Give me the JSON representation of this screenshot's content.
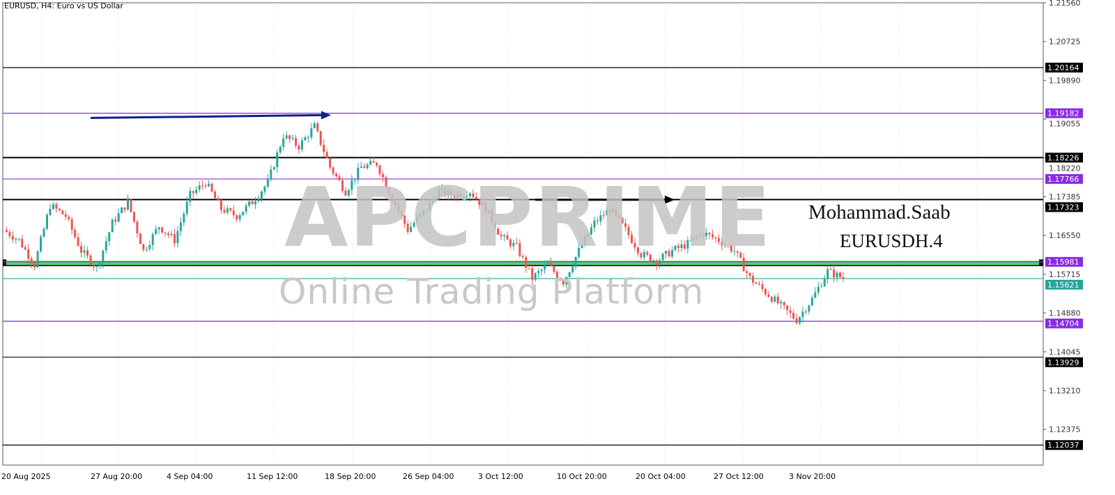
{
  "title": "EURUSD, H4:  Euro vs US Dollar",
  "watermark": {
    "brand": "APCPRIME",
    "tagline": "Online Trading Platform"
  },
  "annotation": {
    "author": "Mohammad.Saab",
    "symbol": "EURUSDH.4"
  },
  "chart_data": {
    "type": "candlestick",
    "symbol": "EURUSD",
    "timeframe": "H4",
    "ylim": [
      1.1175,
      1.2156
    ],
    "y_ticks": [
      "1.21560",
      "1.20725",
      "1.19890",
      "1.19055",
      "1.18220",
      "1.17385",
      "1.16550",
      "1.15715",
      "1.14880",
      "1.14045",
      "1.13210",
      "1.12375"
    ],
    "x_ticks": [
      "20 Aug 2025",
      "27 Aug 20:00",
      "4 Sep 04:00",
      "11 Sep 12:00",
      "18 Sep 20:00",
      "26 Sep 04:00",
      "3 Oct 12:00",
      "10 Oct 20:00",
      "20 Oct 04:00",
      "27 Oct 12:00",
      "3 Nov 20:00"
    ],
    "grid": true,
    "colors": {
      "bull": "#26a69a",
      "bear": "#ef5350"
    },
    "approx_closes": [
      1.1667,
      1.1645,
      1.1592,
      1.172,
      1.1697,
      1.1622,
      1.1585,
      1.1682,
      1.1727,
      1.1622,
      1.1675,
      1.1645,
      1.1742,
      1.1769,
      1.1712,
      1.1697,
      1.1727,
      1.1769,
      1.187,
      1.1847,
      1.189,
      1.1802,
      1.175,
      1.1802,
      1.181,
      1.1735,
      1.1667,
      1.1705,
      1.175,
      1.1742,
      1.175,
      1.1712,
      1.1652,
      1.163,
      1.1563,
      1.1592,
      1.1555,
      1.1622,
      1.1682,
      1.1712,
      1.1667,
      1.1615,
      1.16,
      1.1622,
      1.1637,
      1.166,
      1.1645,
      1.1622,
      1.1563,
      1.1533,
      1.1503,
      1.1473,
      1.1518,
      1.1578,
      1.1563
    ],
    "levels": [
      {
        "price": 1.20164,
        "label": "1.20164",
        "color": "#000000",
        "weight": "thin"
      },
      {
        "price": 1.19182,
        "label": "1.19182",
        "color": "#8a2be2",
        "weight": "thin"
      },
      {
        "price": 1.18226,
        "label": "1.18226",
        "color": "#000000",
        "weight": "thick"
      },
      {
        "price": 1.17766,
        "label": "1.17766",
        "color": "#8a2be2",
        "weight": "thin"
      },
      {
        "price": 1.17323,
        "label": "1.17323",
        "color": "#000000",
        "weight": "thick"
      },
      {
        "price": 1.15981,
        "label": "1.15981",
        "color": "#8a2be2",
        "weight": "thin"
      },
      {
        "price": 1.15621,
        "label": "1.15621",
        "color": "#26a69a",
        "weight": "thin"
      },
      {
        "price": 1.14704,
        "label": "1.14704",
        "color": "#8a2be2",
        "weight": "thin"
      },
      {
        "price": 1.13929,
        "label": "1.13929",
        "color": "#000000",
        "weight": "thin"
      },
      {
        "price": 1.12037,
        "label": "1.12037",
        "color": "#000000",
        "weight": "thin"
      }
    ],
    "zone": {
      "top": 1.1599,
      "bottom": 1.1593,
      "color": "#4cd964"
    },
    "arrows": [
      {
        "price_start": 1.1908,
        "price_end": 1.1914,
        "color": "#0a1f8f",
        "from": "27 Aug 20:00",
        "to": "18 Sep 20:00"
      },
      {
        "price_start": 1.1732,
        "price_end": 1.1732,
        "color": "#000000",
        "from": "10 Oct 20:00",
        "to": "20 Oct 04:00"
      }
    ]
  }
}
